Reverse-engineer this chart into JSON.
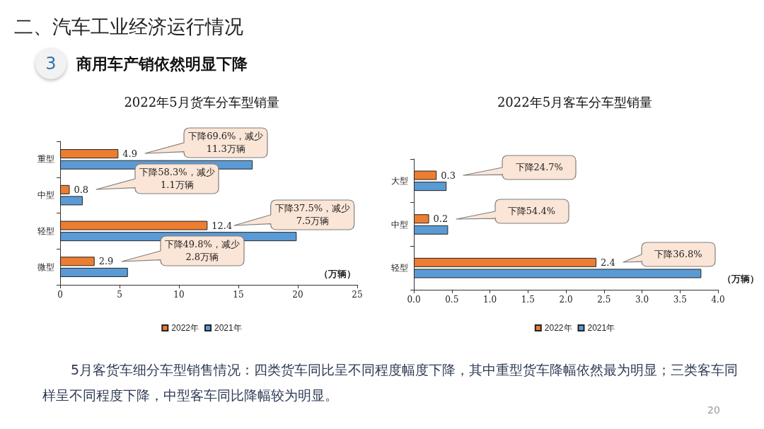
{
  "chart_data": [
    {
      "type": "other",
      "title": "二、汽车工业经济运行情况",
      "subtitle": "商用车产销依然明显下降",
      "annotations": [
        "3",
        "5月客货车细分车型销售情况：四类货车同比呈不同程度幅度下降，其中重型货车降幅依然最为明显；三类客车同样呈不同程度下降，中型客车同比降幅较为明显。",
        "20"
      ]
    },
    {
      "type": "bar",
      "orientation": "horizontal",
      "title": "2022年5月货车分车型销量",
      "xlabel": "（万辆）",
      "categories": [
        "重型",
        "中型",
        "轻型",
        "微型"
      ],
      "series": [
        {
          "name": "2022年",
          "color": "#ed7d31",
          "values": [
            4.9,
            0.8,
            12.4,
            2.9
          ],
          "value_labels": [
            "4.9",
            "0.8",
            "12.4",
            "2.9"
          ]
        },
        {
          "name": "2021年",
          "color": "#5b9bd5",
          "values": [
            16.2,
            1.9,
            19.9,
            5.7
          ]
        }
      ],
      "xlim": [
        0,
        25
      ],
      "xticks": [
        0,
        5,
        10,
        15,
        20,
        25
      ],
      "grid": false,
      "legend": "bottom",
      "annotations": [
        "下降69.6%，减少11.3万辆",
        "下降58.3%，减少1.1万辆",
        "下降37.5%，减少7.5万辆",
        "下降49.8%，减少2.8万辆"
      ]
    },
    {
      "type": "bar",
      "orientation": "horizontal",
      "title": "2022年5月客车分车型销量",
      "xlabel": "（万辆）",
      "categories": [
        "大型",
        "中型",
        "轻型"
      ],
      "series": [
        {
          "name": "2022年",
          "color": "#ed7d31",
          "values": [
            0.3,
            0.2,
            2.4
          ],
          "value_labels": [
            "0.3",
            "0.2",
            "2.4"
          ]
        },
        {
          "name": "2021年",
          "color": "#5b9bd5",
          "values": [
            0.43,
            0.45,
            3.78
          ]
        }
      ],
      "xlim": [
        0,
        4
      ],
      "xticks": [
        {
          "value": 0,
          "label": "0.0"
        },
        0.5,
        {
          "value": 1,
          "label": "1.0"
        },
        1.5,
        {
          "value": 2,
          "label": "2.0"
        },
        2.5,
        {
          "value": 3,
          "label": "3.0"
        },
        3.5,
        {
          "value": 4,
          "label": "4.0"
        }
      ],
      "grid": false,
      "legend": "bottom",
      "annotations": [
        "下降24.7%",
        "下降54.4%",
        "下降36.8%"
      ]
    }
  ]
}
